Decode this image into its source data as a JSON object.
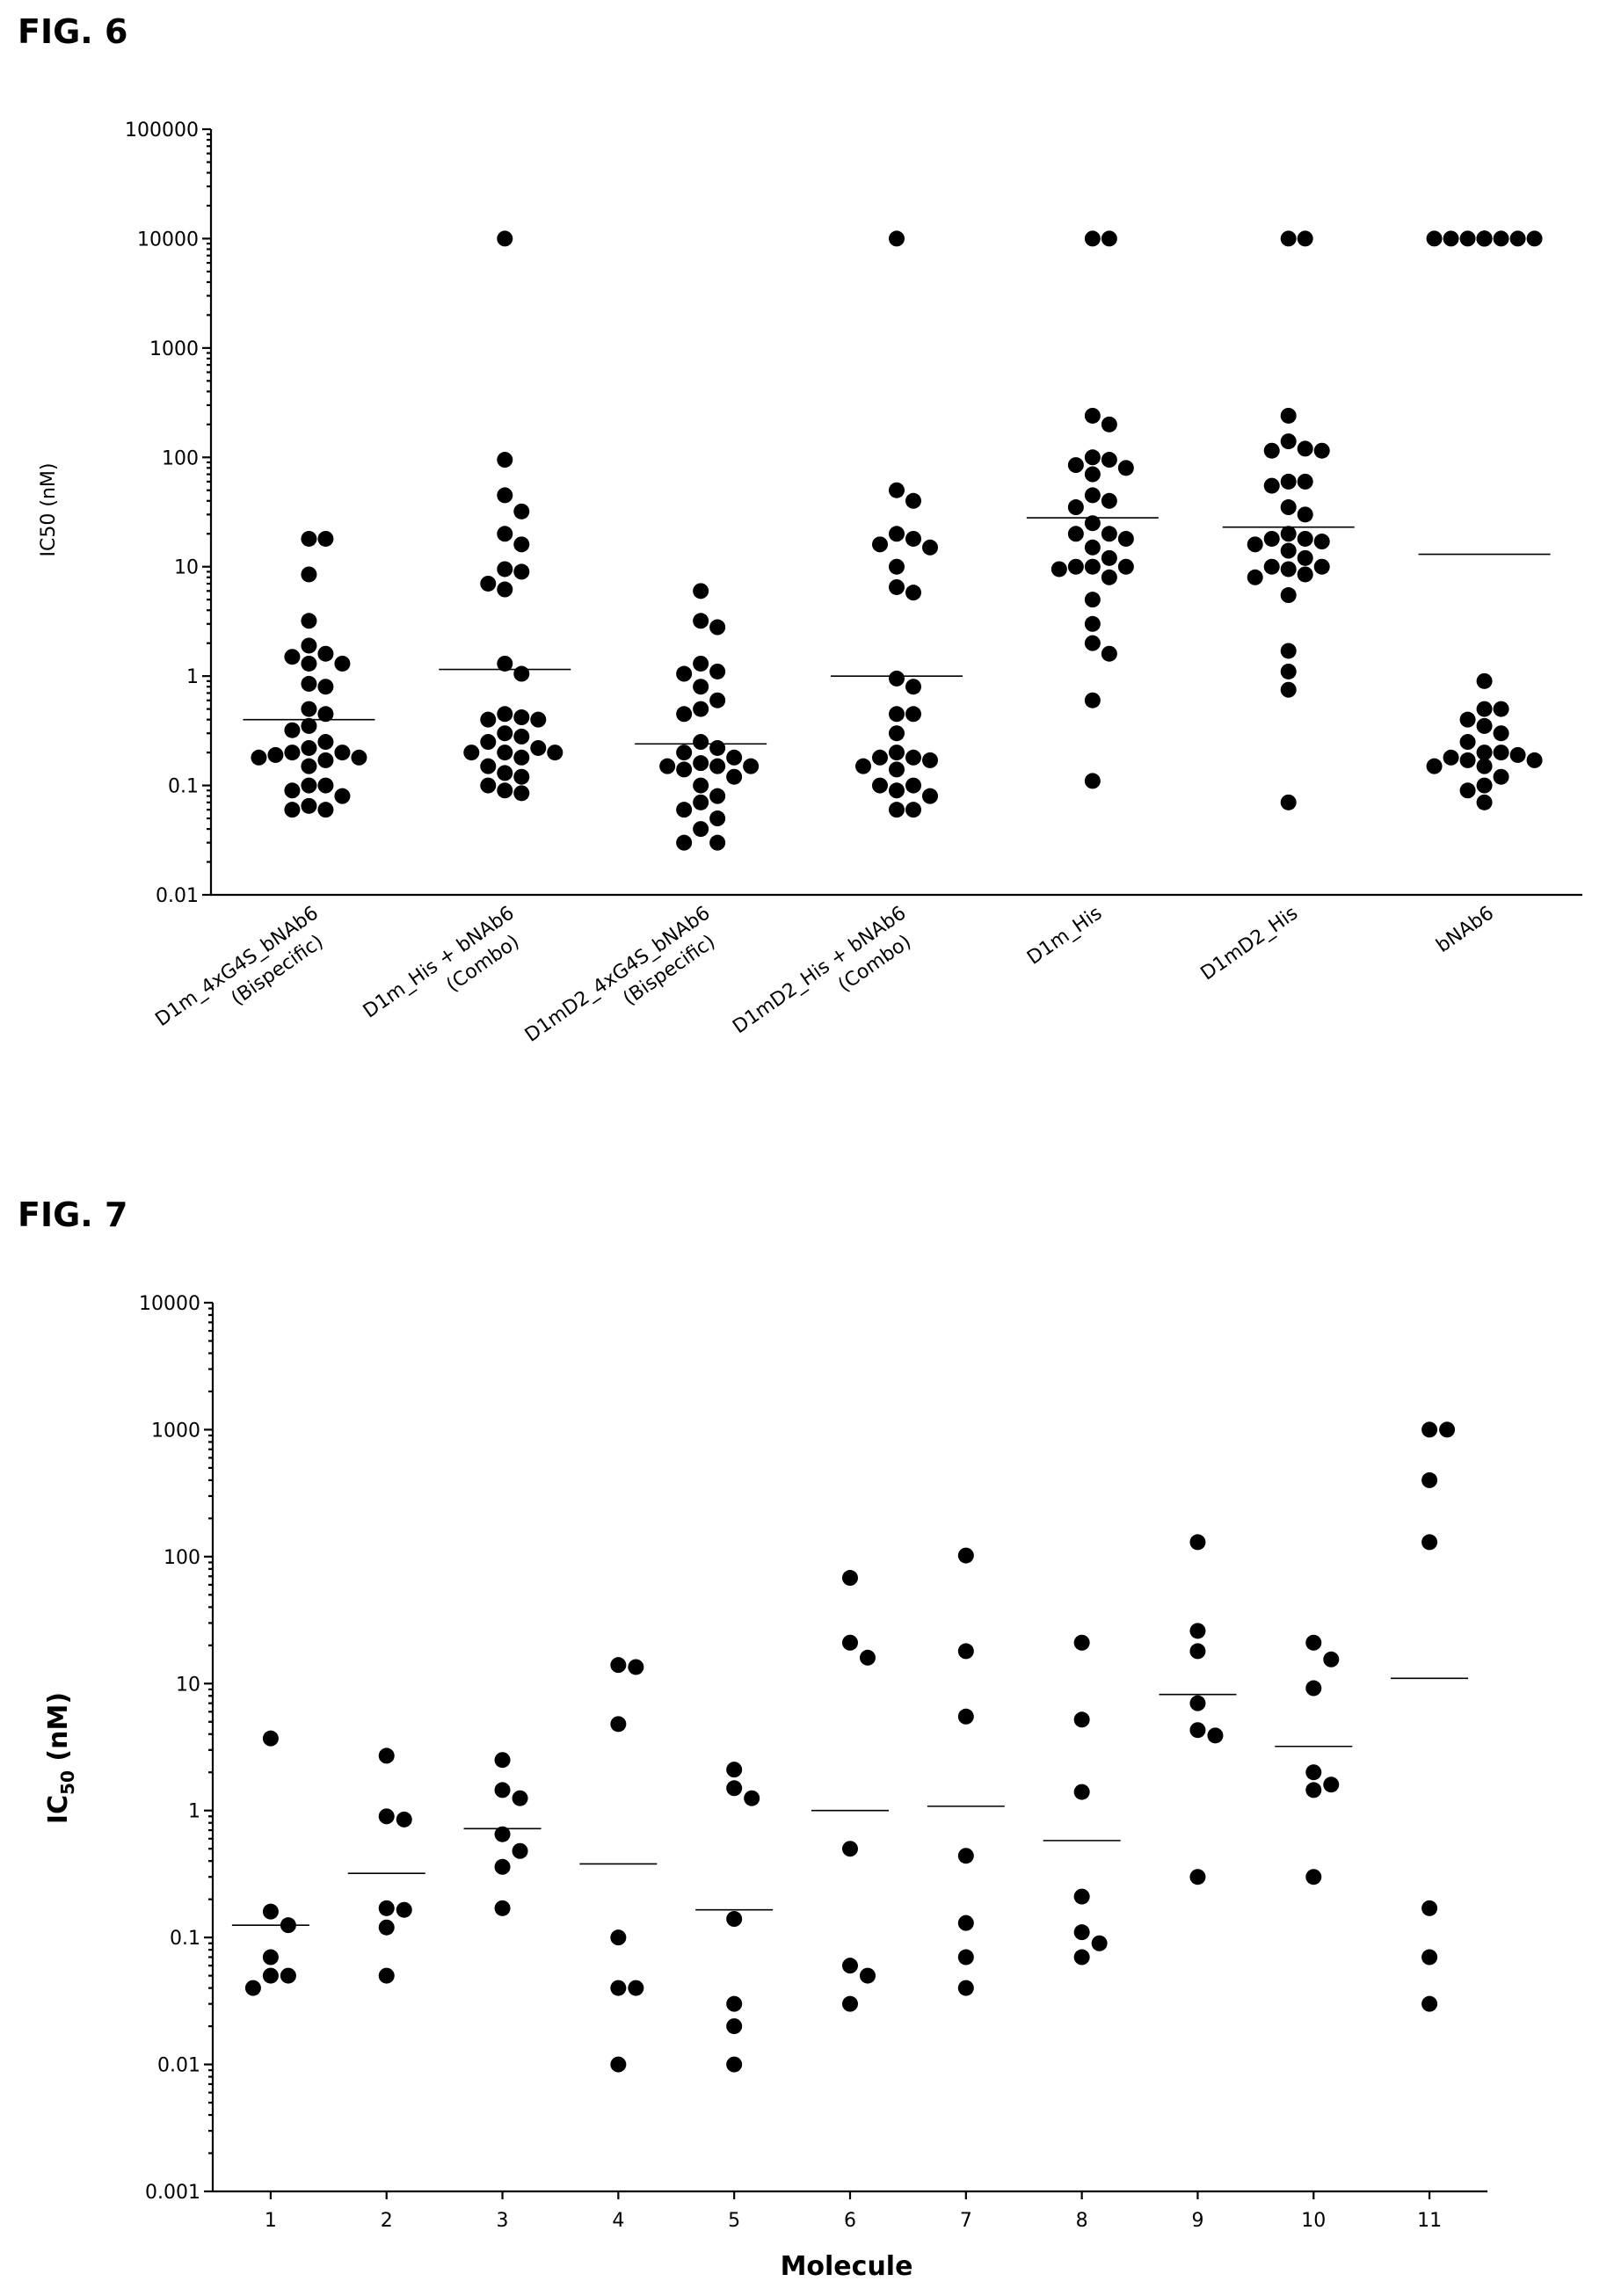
{
  "figures": {
    "fig6_label": "FIG. 6",
    "fig7_label": "FIG. 7"
  },
  "chart_data": [
    {
      "type": "scatter",
      "figure": "FIG. 6",
      "ylabel": "IC50 (nM)",
      "xlabel": "",
      "yscale": "log",
      "ylim": [
        0.01,
        100000
      ],
      "yticks": [
        "100000",
        "10000",
        "1000",
        "100",
        "10",
        "1",
        "0.1",
        "0.01"
      ],
      "categories": [
        {
          "line1": "D1m_4xG4S_bNAb6",
          "line2": "(Bispecific)"
        },
        {
          "line1": "D1m_His + bNAb6",
          "line2": "(Combo)"
        },
        {
          "line1": "D1mD2_4xG4S_bNAb6",
          "line2": "(Bispecific)"
        },
        {
          "line1": "D1mD2_His + bNAb6",
          "line2": "(Combo)"
        },
        {
          "line1": "D1m_His",
          "line2": ""
        },
        {
          "line1": "D1mD2_His",
          "line2": ""
        },
        {
          "line1": "bNAb6",
          "line2": ""
        }
      ],
      "medians": [
        0.4,
        1.15,
        0.24,
        1.0,
        28,
        23,
        13
      ],
      "series": [
        {
          "values": [
            18,
            18,
            8.5,
            3.2,
            1.9,
            1.6,
            1.5,
            1.3,
            1.3,
            0.85,
            0.8,
            0.5,
            0.45,
            0.35,
            0.32,
            0.25,
            0.22,
            0.2,
            0.2,
            0.19,
            0.18,
            0.18,
            0.17,
            0.15,
            0.1,
            0.1,
            0.09,
            0.08,
            0.065,
            0.06,
            0.06
          ]
        },
        {
          "values": [
            10000,
            95,
            45,
            32,
            20,
            16,
            9.5,
            9,
            7,
            6.2,
            1.3,
            1.05,
            0.45,
            0.42,
            0.4,
            0.4,
            0.3,
            0.28,
            0.25,
            0.22,
            0.2,
            0.2,
            0.2,
            0.18,
            0.15,
            0.13,
            0.12,
            0.1,
            0.09,
            0.085
          ]
        },
        {
          "values": [
            6,
            3.2,
            2.8,
            1.3,
            1.1,
            1.05,
            0.8,
            0.6,
            0.5,
            0.45,
            0.25,
            0.22,
            0.2,
            0.18,
            0.16,
            0.15,
            0.15,
            0.15,
            0.14,
            0.12,
            0.1,
            0.08,
            0.07,
            0.06,
            0.05,
            0.04,
            0.03,
            0.03
          ]
        },
        {
          "values": [
            10000,
            50,
            40,
            20,
            18,
            16,
            15,
            10,
            6.5,
            5.8,
            0.95,
            0.8,
            0.45,
            0.45,
            0.3,
            0.2,
            0.18,
            0.18,
            0.17,
            0.15,
            0.14,
            0.1,
            0.1,
            0.09,
            0.08,
            0.06,
            0.06
          ]
        },
        {
          "values": [
            10000,
            10000,
            240,
            200,
            100,
            95,
            85,
            80,
            70,
            45,
            40,
            35,
            25,
            20,
            20,
            18,
            15,
            12,
            10,
            10,
            10,
            9.5,
            8,
            5,
            3,
            2,
            1.6,
            0.6,
            0.11
          ]
        },
        {
          "values": [
            10000,
            10000,
            240,
            140,
            120,
            115,
            115,
            60,
            60,
            55,
            35,
            30,
            20,
            18,
            18,
            17,
            16,
            14,
            12,
            10,
            10,
            9.5,
            8.5,
            8,
            5.5,
            1.7,
            1.1,
            0.75,
            0.07
          ]
        },
        {
          "values": [
            10000,
            10000,
            10000,
            10000,
            10000,
            10000,
            10000,
            10000,
            10000,
            10000,
            10000,
            10000,
            10000,
            10000,
            0.9,
            0.5,
            0.5,
            0.4,
            0.35,
            0.3,
            0.25,
            0.2,
            0.2,
            0.19,
            0.18,
            0.17,
            0.17,
            0.15,
            0.15,
            0.12,
            0.1,
            0.09,
            0.07
          ]
        }
      ]
    },
    {
      "type": "scatter",
      "figure": "FIG. 7",
      "ylabel_main": "IC",
      "ylabel_sub": "50",
      "ylabel_unit": " (nM)",
      "xlabel": "Molecule",
      "yscale": "log",
      "ylim": [
        0.001,
        10000
      ],
      "yticks": [
        "10000",
        "1000",
        "100",
        "10",
        "1",
        "0.1",
        "0.01",
        "0.001"
      ],
      "categories": [
        "1",
        "2",
        "3",
        "4",
        "5",
        "6",
        "7",
        "8",
        "9",
        "10",
        "11"
      ],
      "medians": [
        0.125,
        0.32,
        0.72,
        0.38,
        0.165,
        1.0,
        1.08,
        0.58,
        8.2,
        3.2,
        11
      ],
      "series": [
        {
          "values": [
            3.7,
            0.16,
            0.125,
            0.07,
            0.05,
            0.05,
            0.04
          ]
        },
        {
          "values": [
            2.7,
            0.9,
            0.85,
            0.17,
            0.165,
            0.12,
            0.05
          ]
        },
        {
          "values": [
            2.5,
            1.45,
            1.25,
            0.65,
            0.48,
            0.36,
            0.17
          ]
        },
        {
          "values": [
            14,
            13.5,
            4.8,
            0.1,
            0.04,
            0.04,
            0.01
          ]
        },
        {
          "values": [
            2.1,
            1.5,
            1.25,
            0.14,
            0.03,
            0.02,
            0.01
          ]
        },
        {
          "values": [
            68,
            21,
            16,
            0.5,
            0.06,
            0.05,
            0.03
          ]
        },
        {
          "values": [
            102,
            18,
            5.5,
            0.44,
            0.13,
            0.07,
            0.04
          ]
        },
        {
          "values": [
            21,
            5.2,
            1.4,
            0.21,
            0.11,
            0.09,
            0.07
          ]
        },
        {
          "values": [
            130,
            26,
            18,
            7,
            4.3,
            3.9,
            0.3
          ]
        },
        {
          "values": [
            21,
            15.5,
            9.2,
            2,
            1.6,
            1.45,
            0.3
          ]
        },
        {
          "values": [
            1000,
            1000,
            400,
            130,
            0.17,
            0.07,
            0.03
          ]
        }
      ]
    }
  ]
}
